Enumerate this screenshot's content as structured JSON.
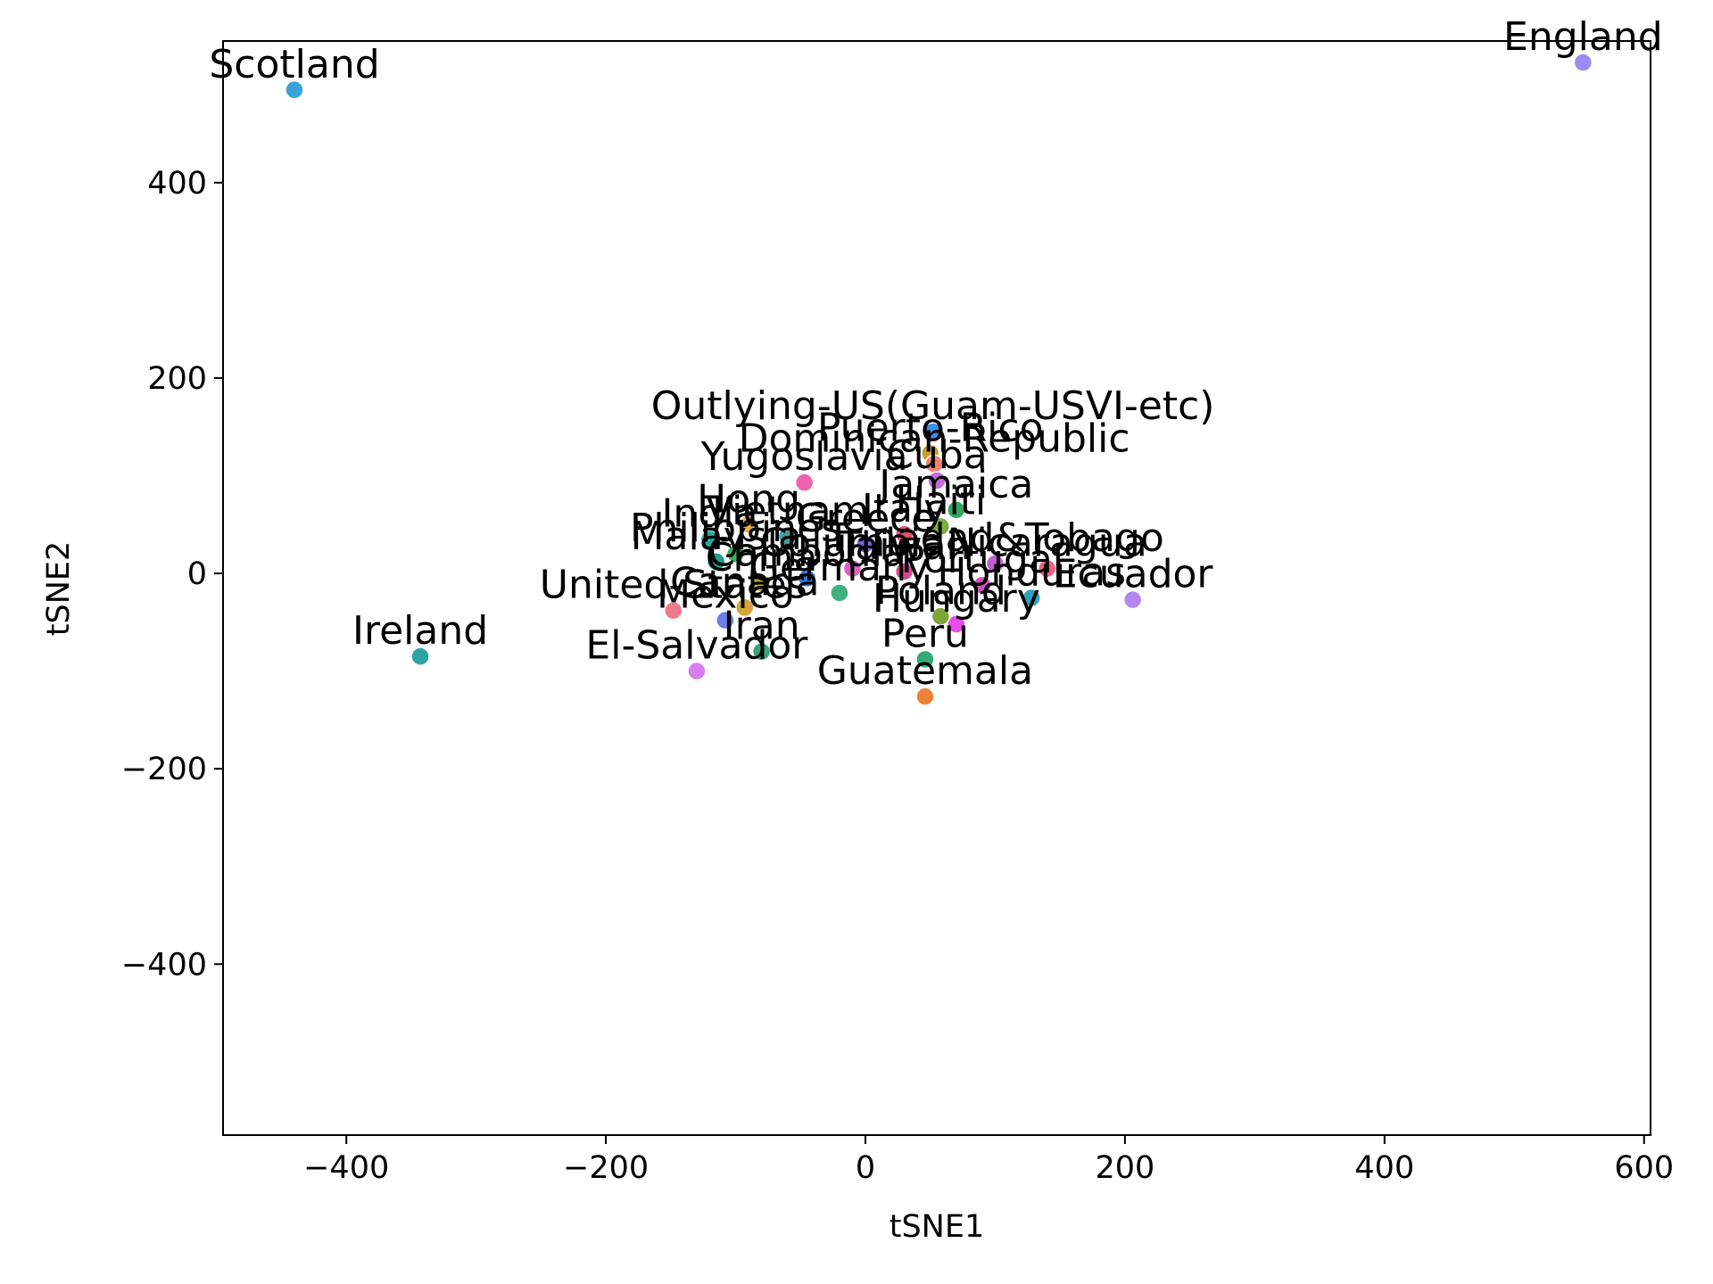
{
  "chart_data": {
    "type": "scatter",
    "xlabel": "tSNE1",
    "ylabel": "tSNE2",
    "xlim": [
      -495,
      605
    ],
    "ylim": [
      -575,
      545
    ],
    "x_ticks": [
      -400,
      -200,
      0,
      200,
      400,
      600
    ],
    "y_ticks": [
      -400,
      -200,
      0,
      200,
      400
    ],
    "grid": false,
    "points": [
      {
        "label": "Scotland",
        "x": -440,
        "y": 495,
        "color": "#3ba3d9"
      },
      {
        "label": "England",
        "x": 553,
        "y": 523,
        "color": "#9a8cf0"
      },
      {
        "label": "Ireland",
        "x": -343,
        "y": -85,
        "color": "#2ba5a3"
      },
      {
        "label": "El-Salvador",
        "x": -130,
        "y": -100,
        "color": "#d67ef0"
      },
      {
        "label": "Guatemala",
        "x": 46,
        "y": -126,
        "color": "#f0813a"
      },
      {
        "label": "Peru",
        "x": 46,
        "y": -88,
        "color": "#33ab78"
      },
      {
        "label": "Iran",
        "x": -80,
        "y": -80,
        "color": "#35a57a"
      },
      {
        "label": "Mexico",
        "x": -108,
        "y": -48,
        "color": "#6c7de8"
      },
      {
        "label": "United-States",
        "x": -148,
        "y": -38,
        "color": "#f07a8a"
      },
      {
        "label": "Canada",
        "x": -93,
        "y": -35,
        "color": "#d4a53a"
      },
      {
        "label": "Hungary",
        "x": 70,
        "y": -52,
        "color": "#e64ce8"
      },
      {
        "label": "Poland",
        "x": 58,
        "y": -44,
        "color": "#7ea63a"
      },
      {
        "label": "Ecuador",
        "x": 206,
        "y": -27,
        "color": "#b088f0"
      },
      {
        "label": "Honduras",
        "x": 128,
        "y": -25,
        "color": "#2fa2c3"
      },
      {
        "label": "Outlying-US(Guam-USVI-etc)",
        "x": 52,
        "y": 145,
        "color": "#3a8de0"
      },
      {
        "label": "Puerto-Rico",
        "x": 50,
        "y": 123,
        "color": "#c8a030"
      },
      {
        "label": "Dominican-Republic",
        "x": 53,
        "y": 112,
        "color": "#f08070"
      },
      {
        "label": "Cuba",
        "x": 55,
        "y": 95,
        "color": "#c86adc"
      },
      {
        "label": "Yugoslavia",
        "x": -47,
        "y": 93,
        "color": "#f062ac"
      },
      {
        "label": "Jamaica",
        "x": 70,
        "y": 65,
        "color": "#30a860"
      },
      {
        "label": "Haiti",
        "x": 58,
        "y": 48,
        "color": "#78b040"
      },
      {
        "label": "Hong",
        "x": -90,
        "y": 50,
        "color": "#e8b040"
      },
      {
        "label": "Vietnam",
        "x": -60,
        "y": 38,
        "color": "#40a0a0"
      },
      {
        "label": "Italy",
        "x": 30,
        "y": 40,
        "color": "#e85070"
      },
      {
        "label": "Greece",
        "x": 0,
        "y": 30,
        "color": "#8060e0"
      },
      {
        "label": "India",
        "x": -120,
        "y": 35,
        "color": "#2aa7a0"
      },
      {
        "label": "Philippines",
        "x": -100,
        "y": 20,
        "color": "#40b060"
      },
      {
        "label": "Nicaragua",
        "x": 140,
        "y": 5,
        "color": "#f06080"
      },
      {
        "label": "Trinadad&Tobago",
        "x": 100,
        "y": 10,
        "color": "#c060d0"
      },
      {
        "label": "Malaysia",
        "x": -115,
        "y": 12,
        "color": "#22a08a"
      },
      {
        "label": "Columbia",
        "x": -10,
        "y": 5,
        "color": "#e060c0"
      },
      {
        "label": "Taiwan",
        "x": 30,
        "y": 2,
        "color": "#d04890"
      },
      {
        "label": "Cambodia",
        "x": -45,
        "y": -5,
        "color": "#3080e0"
      },
      {
        "label": "China",
        "x": -80,
        "y": -10,
        "color": "#b0b030"
      },
      {
        "label": "Germany",
        "x": -20,
        "y": -20,
        "color": "#40b080"
      },
      {
        "label": "Portugal",
        "x": 90,
        "y": -12,
        "color": "#d050c0"
      }
    ]
  }
}
